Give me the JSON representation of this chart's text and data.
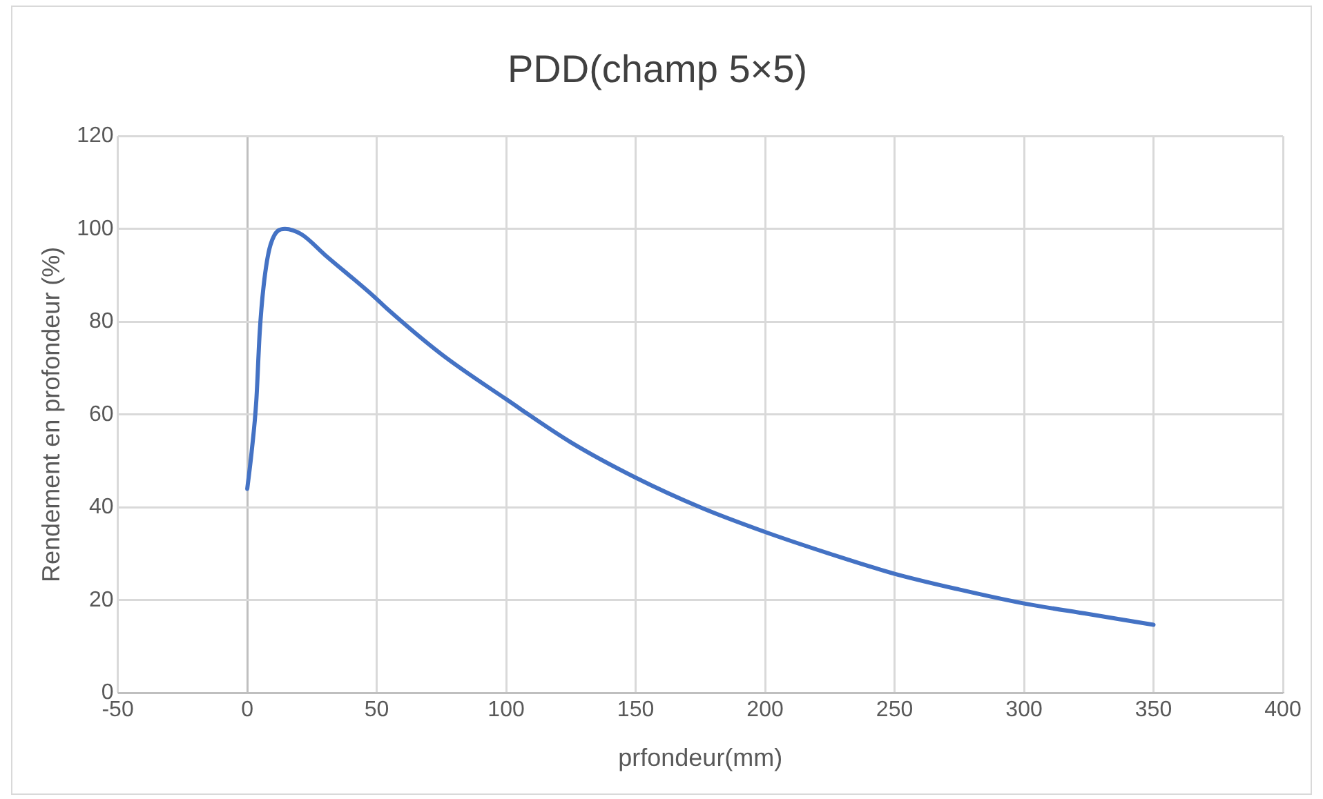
{
  "chart_data": {
    "type": "line",
    "title": "PDD(champ 5×5)",
    "xlabel": "prfondeur(mm)",
    "ylabel": "Rendement en profondeur (%)",
    "x": [
      0,
      1.7,
      3.5,
      4.8,
      6.3,
      9,
      14.6,
      21,
      30,
      49,
      53.8,
      75,
      100,
      125,
      150,
      175,
      200,
      225,
      250,
      275,
      300,
      325,
      350
    ],
    "series": [
      {
        "color": "#4472c4",
        "values": [
          44,
          52,
          63,
          77.6,
          87.6,
          96.6,
          100,
          98.8,
          94.4,
          85.4,
          82.9,
          73,
          63.3,
          54,
          46.4,
          40,
          34.7,
          30,
          25.7,
          22.3,
          19.3,
          17,
          14.7
        ]
      }
    ],
    "xlim": [
      -50,
      400
    ],
    "xticks": [
      -50,
      0,
      50,
      100,
      150,
      200,
      250,
      300,
      350,
      400
    ],
    "ylim": [
      0,
      120
    ],
    "yticks": [
      0,
      20,
      40,
      60,
      80,
      100,
      120
    ],
    "grid": true,
    "legend": false,
    "marker": "none",
    "line_style": "solid"
  }
}
